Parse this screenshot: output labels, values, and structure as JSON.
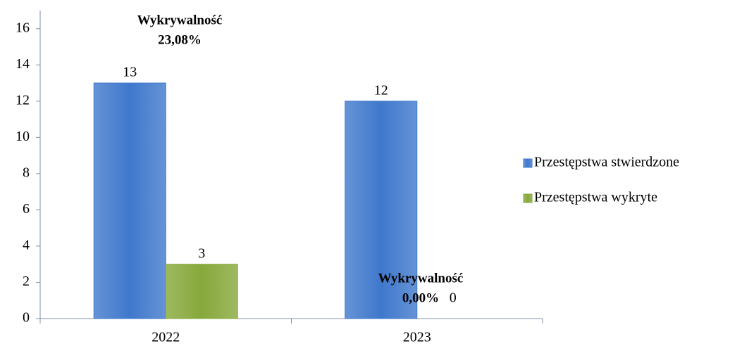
{
  "chart_data": {
    "type": "bar",
    "categories": [
      "2022",
      "2023"
    ],
    "series": [
      {
        "name": "Przestępstwa stwierdzone",
        "color": "#3f78cc",
        "values": [
          13,
          12
        ]
      },
      {
        "name": "Przestępstwa wykryte",
        "color": "#86a83a",
        "values": [
          3,
          0
        ]
      }
    ],
    "ylim": [
      0,
      17
    ],
    "yticks": [
      0,
      2,
      4,
      6,
      8,
      10,
      12,
      14,
      16
    ],
    "legend": "right",
    "annotations": [
      {
        "lines": [
          "Wykrywalność",
          "23,08%"
        ]
      },
      {
        "lines": [
          "Wykrywalność",
          "0,00%"
        ]
      }
    ]
  }
}
